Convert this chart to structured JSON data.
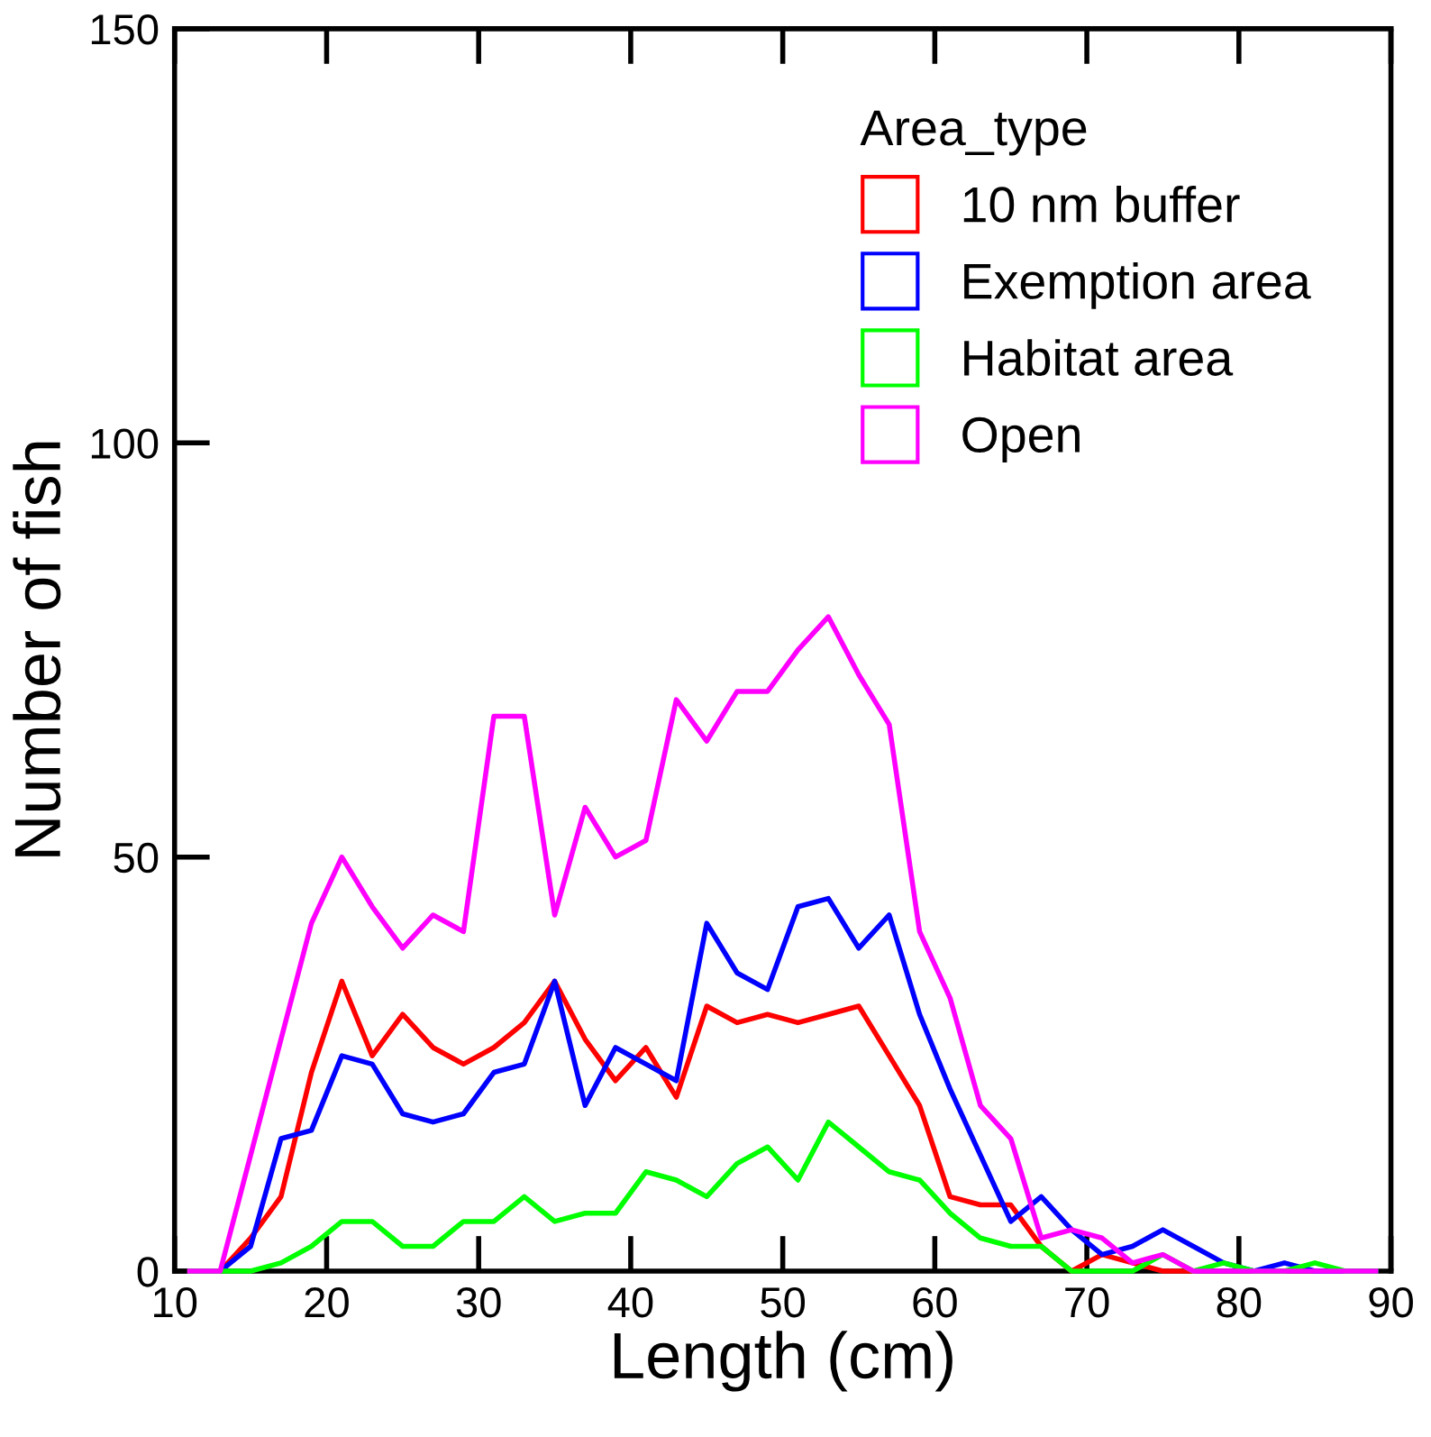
{
  "chart_data": {
    "type": "line",
    "xlabel": "Length (cm)",
    "ylabel": "Number of fish",
    "legend_title": "Area_type",
    "x": [
      11,
      13,
      15,
      17,
      19,
      21,
      23,
      25,
      27,
      29,
      31,
      33,
      35,
      37,
      39,
      41,
      43,
      45,
      47,
      49,
      51,
      53,
      55,
      57,
      59,
      61,
      63,
      65,
      67,
      69,
      71,
      73,
      75,
      77,
      79,
      81,
      83,
      85,
      87,
      89
    ],
    "series": [
      {
        "name": "10 nm buffer",
        "color": "#ff0000",
        "values": [
          0,
          0,
          4,
          9,
          24,
          35,
          26,
          31,
          27,
          25,
          27,
          30,
          35,
          28,
          23,
          27,
          21,
          32,
          30,
          31,
          30,
          31,
          32,
          26,
          20,
          9,
          8,
          8,
          3,
          0,
          2,
          1,
          0,
          0,
          null,
          null,
          null,
          null,
          null,
          null
        ]
      },
      {
        "name": "Exemption area",
        "color": "#0000ff",
        "values": [
          0,
          0,
          3,
          16,
          17,
          26,
          25,
          19,
          18,
          19,
          24,
          25,
          35,
          20,
          27,
          25,
          23,
          42,
          36,
          34,
          44,
          45,
          39,
          43,
          31,
          22,
          14,
          6,
          9,
          5,
          2,
          3,
          5,
          3,
          1,
          0,
          1,
          0,
          0,
          0
        ]
      },
      {
        "name": "Habitat area",
        "color": "#00ff00",
        "values": [
          0,
          0,
          0,
          1,
          3,
          6,
          6,
          3,
          3,
          6,
          6,
          9,
          6,
          7,
          7,
          12,
          11,
          9,
          13,
          15,
          11,
          18,
          15,
          12,
          11,
          7,
          4,
          3,
          3,
          0,
          0,
          0,
          2,
          0,
          1,
          0,
          0,
          1,
          0,
          0
        ]
      },
      {
        "name": "Open",
        "color": "#ff00ff",
        "values": [
          0,
          0,
          14,
          28,
          42,
          50,
          44,
          39,
          43,
          41,
          67,
          67,
          43,
          56,
          50,
          52,
          69,
          64,
          70,
          70,
          75,
          79,
          72,
          66,
          41,
          33,
          20,
          16,
          4,
          5,
          4,
          1,
          2,
          0,
          0,
          0,
          0,
          0,
          0,
          0
        ]
      }
    ],
    "xlim": [
      10,
      90
    ],
    "xticks": [
      10,
      20,
      30,
      40,
      50,
      60,
      70,
      80,
      90
    ],
    "ylim": [
      0,
      150
    ],
    "yticks": [
      0,
      50,
      100,
      150
    ],
    "legend": "top right",
    "marker": "none",
    "line_style": "solid",
    "grid": false
  }
}
